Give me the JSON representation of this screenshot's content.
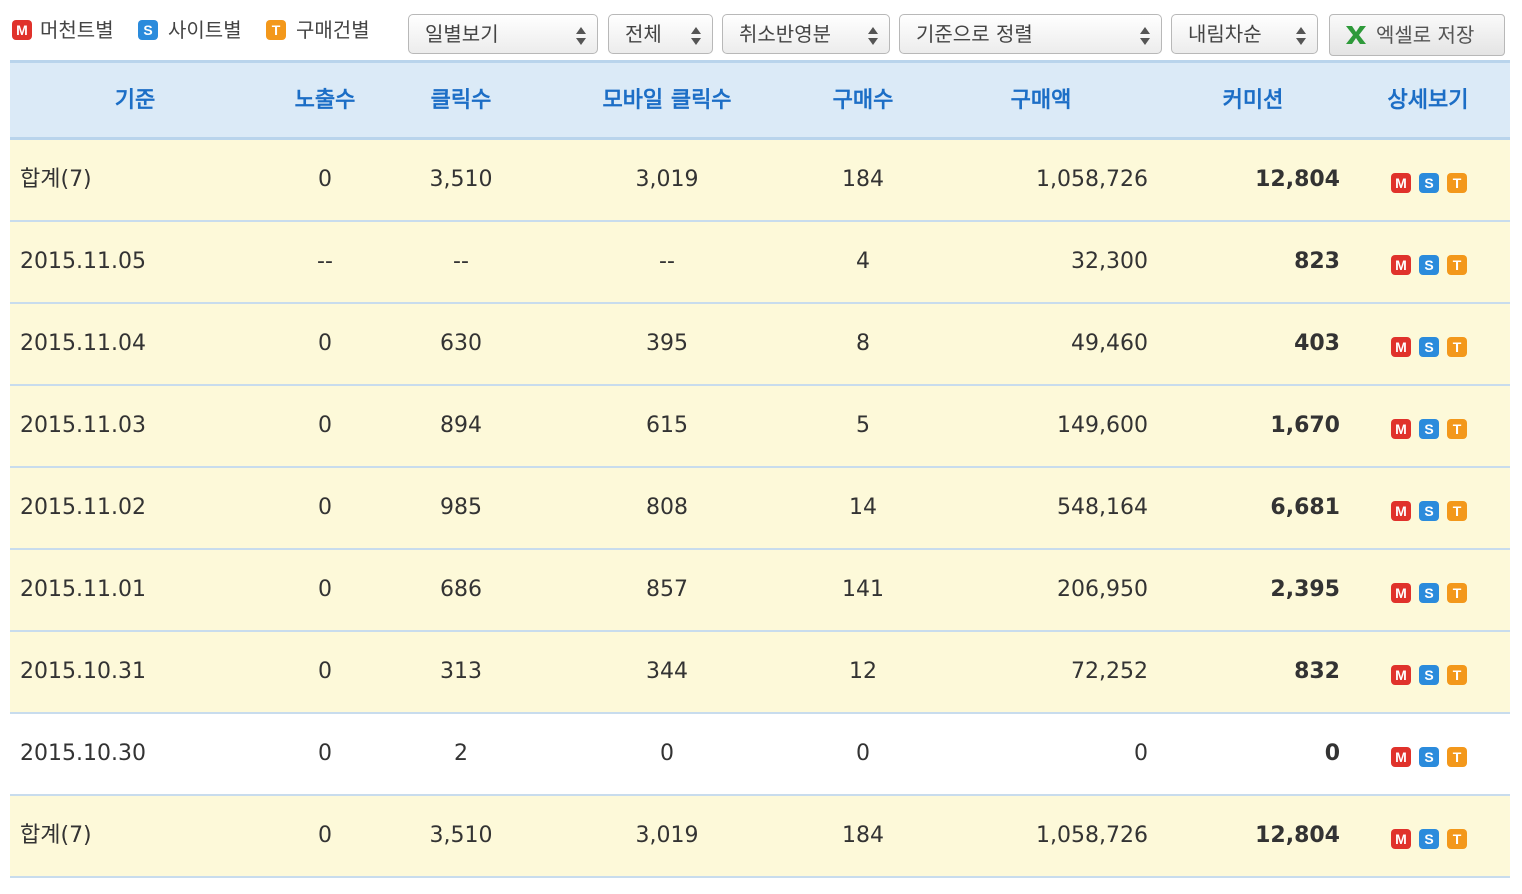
{
  "toolbar": {
    "legend": [
      {
        "icon": "M",
        "label": "머천트별"
      },
      {
        "icon": "S",
        "label": "사이트별"
      },
      {
        "icon": "T",
        "label": "구매건별"
      }
    ],
    "selects": [
      "일별보기",
      "전체",
      "취소반영분",
      "기준으로 정렬",
      "내림차순"
    ],
    "button": "엑셀로 저장"
  },
  "table": {
    "headers": [
      "기준",
      "노출수",
      "클릭수",
      "모바일 클릭수",
      "구매수",
      "구매액",
      "커미션",
      "상세보기"
    ],
    "detail_icons": [
      "M",
      "S",
      "T"
    ],
    "rows": [
      {
        "cells": [
          "합계(7)",
          "0",
          "3,510",
          "3,019",
          "184",
          "1,058,726",
          "12,804"
        ],
        "highlight": true
      },
      {
        "cells": [
          "2015.11.05",
          "--",
          "--",
          "--",
          "4",
          "32,300",
          "823"
        ],
        "highlight": true
      },
      {
        "cells": [
          "2015.11.04",
          "0",
          "630",
          "395",
          "8",
          "49,460",
          "403"
        ],
        "highlight": true
      },
      {
        "cells": [
          "2015.11.03",
          "0",
          "894",
          "615",
          "5",
          "149,600",
          "1,670"
        ],
        "highlight": true
      },
      {
        "cells": [
          "2015.11.02",
          "0",
          "985",
          "808",
          "14",
          "548,164",
          "6,681"
        ],
        "highlight": true
      },
      {
        "cells": [
          "2015.11.01",
          "0",
          "686",
          "857",
          "141",
          "206,950",
          "2,395"
        ],
        "highlight": true
      },
      {
        "cells": [
          "2015.10.31",
          "0",
          "313",
          "344",
          "12",
          "72,252",
          "832"
        ],
        "highlight": true
      },
      {
        "cells": [
          "2015.10.30",
          "0",
          "2",
          "0",
          "0",
          "0",
          "0"
        ],
        "highlight": false
      },
      {
        "cells": [
          "합계(7)",
          "0",
          "3,510",
          "3,019",
          "184",
          "1,058,726",
          "12,804"
        ],
        "highlight": true
      }
    ]
  }
}
